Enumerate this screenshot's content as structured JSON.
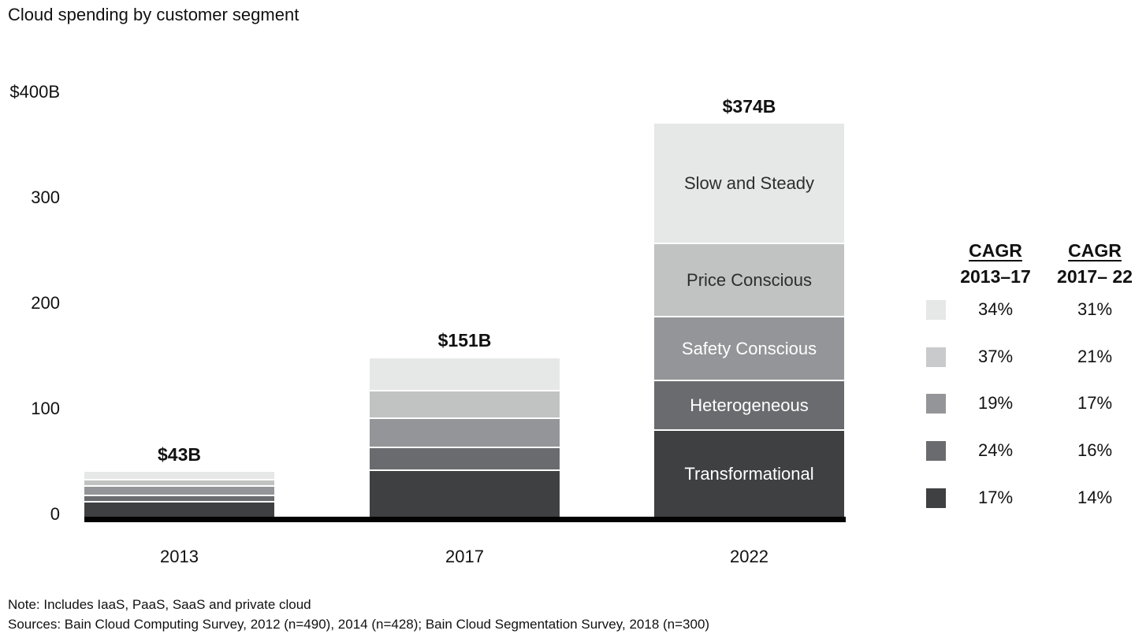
{
  "title": "Cloud spending by customer segment",
  "chart_data": {
    "type": "bar",
    "stacked": true,
    "title": "Cloud spending by customer segment",
    "unit": "USD billions",
    "categories": [
      "2013",
      "2017",
      "2022"
    ],
    "bar_totals": [
      43,
      151,
      374
    ],
    "bar_total_labels": [
      "$43B",
      "$151B",
      "$374B"
    ],
    "series": [
      {
        "name": "Transformational",
        "values": [
          15,
          45,
          83
        ],
        "color": "#3f4042",
        "label_color": "#ffffff"
      },
      {
        "name": "Heterogeneous",
        "values": [
          6,
          22,
          47
        ],
        "color": "#6a6b6e",
        "label_color": "#ffffff"
      },
      {
        "name": "Safety Conscious",
        "values": [
          9,
          28,
          61
        ],
        "color": "#939598",
        "label_color": "#ffffff"
      },
      {
        "name": "Price Conscious",
        "values": [
          6,
          26,
          70
        ],
        "color": "#c1c2c2",
        "label_color": "#2d2d2d"
      },
      {
        "name": "Slow and Steady",
        "values": [
          7,
          30,
          113
        ],
        "color": "#e6e7e7",
        "label_color": "#2d2d2d"
      }
    ],
    "segment_labels_on_category": "2022",
    "y_axis": {
      "range": [
        0,
        400
      ],
      "gridlines": false,
      "ticks": [
        {
          "label": "$400B",
          "value": 400
        },
        {
          "label": "300",
          "value": 300
        },
        {
          "label": "200",
          "value": 200
        },
        {
          "label": "100",
          "value": 100
        },
        {
          "label": "0",
          "value": 0
        }
      ]
    },
    "legend_position": "right"
  },
  "legend": {
    "columns": [
      {
        "header": "CAGR",
        "subheader": "2013–17"
      },
      {
        "header": "CAGR",
        "subheader": "2017– 22"
      }
    ],
    "rows": [
      {
        "segment": "Slow and Steady",
        "color": "#e6e7e7",
        "cagr_2013_17": "34%",
        "cagr_2017_22": "31%"
      },
      {
        "segment": "Price Conscious",
        "color": "#c9cacb",
        "cagr_2013_17": "37%",
        "cagr_2017_22": "21%"
      },
      {
        "segment": "Safety Conscious",
        "color": "#939598",
        "cagr_2013_17": "19%",
        "cagr_2017_22": "17%"
      },
      {
        "segment": "Heterogeneous",
        "color": "#6a6b6e",
        "cagr_2013_17": "24%",
        "cagr_2017_22": "16%"
      },
      {
        "segment": "Transformational",
        "color": "#3f4042",
        "cagr_2013_17": "17%",
        "cagr_2017_22": "14%"
      }
    ]
  },
  "footer": {
    "note": "Note: Includes IaaS, PaaS, SaaS and private cloud",
    "sources": "Sources: Bain Cloud Computing Survey, 2012 (n=490), 2014 (n=428); Bain Cloud Segmentation Survey, 2018 (n=300)"
  }
}
